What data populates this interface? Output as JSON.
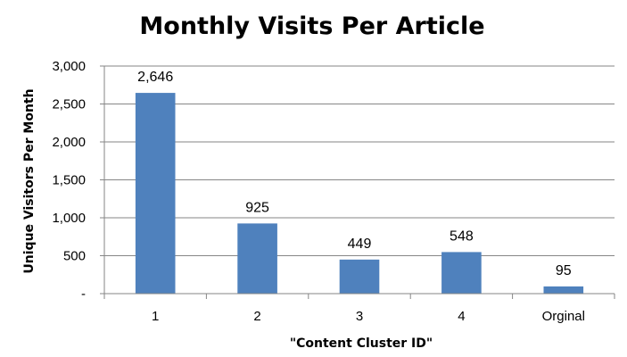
{
  "chart_data": {
    "type": "bar",
    "title": "Monthly Visits Per Article",
    "xlabel": "\"Content Cluster ID\"",
    "ylabel": "Unique Visitors Per Month",
    "categories": [
      "1",
      "2",
      "3",
      "4",
      "Orginal"
    ],
    "values": [
      2646,
      925,
      449,
      548,
      95
    ],
    "data_labels": [
      "2,646",
      "925",
      "449",
      "548",
      "95"
    ],
    "ylim": [
      0,
      3000
    ],
    "y_ticks": [
      0,
      500,
      1000,
      1500,
      2000,
      2500,
      3000
    ],
    "y_tick_labels": [
      "-",
      "500",
      "1,000",
      "1,500",
      "2,000",
      "2,500",
      "3,000"
    ],
    "grid": true,
    "legend": "none",
    "bar_color": "#4F81BD",
    "grid_color": "#868686"
  }
}
